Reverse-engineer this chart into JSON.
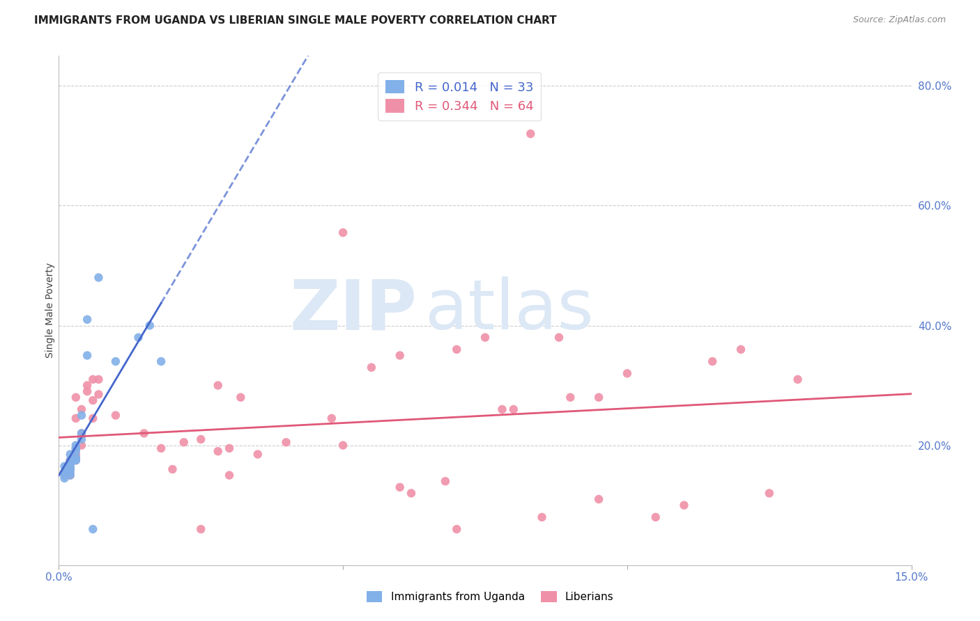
{
  "title": "IMMIGRANTS FROM UGANDA VS LIBERIAN SINGLE MALE POVERTY CORRELATION CHART",
  "source": "Source: ZipAtlas.com",
  "ylabel": "Single Male Poverty",
  "xlim": [
    0.0,
    0.15
  ],
  "ylim": [
    0.0,
    0.85
  ],
  "xtick_vals": [
    0.0,
    0.05,
    0.1,
    0.15
  ],
  "xtick_labels": [
    "0.0%",
    "",
    "",
    "15.0%"
  ],
  "ytick_vals_right": [
    0.8,
    0.6,
    0.4,
    0.2
  ],
  "ytick_labels_right": [
    "80.0%",
    "60.0%",
    "40.0%",
    "20.0%"
  ],
  "uganda_R": "0.014",
  "uganda_N": "33",
  "liberian_R": "0.344",
  "liberian_N": "64",
  "uganda_label": "Immigrants from Uganda",
  "liberian_label": "Liberians",
  "uganda_color": "#82b0e8",
  "liberian_color": "#f090a8",
  "trendline_uganda_color": "#4466cc",
  "trendline_liberian_color": "#e05878",
  "background_color": "#ffffff",
  "grid_color": "#cccccc",
  "tick_label_color": "#5577cc",
  "watermark_zip": "ZIP",
  "watermark_atlas": "atlas",
  "watermark_color": "#dce8f5",
  "scatter_size": 80,
  "title_fontsize": 11,
  "source_fontsize": 9,
  "uganda_x": [
    0.001,
    0.002,
    0.001,
    0.002,
    0.003,
    0.001,
    0.002,
    0.003,
    0.002,
    0.001,
    0.002,
    0.003,
    0.002,
    0.003,
    0.002,
    0.001,
    0.002,
    0.003,
    0.002,
    0.002,
    0.003,
    0.004,
    0.003,
    0.004,
    0.004,
    0.005,
    0.005,
    0.007,
    0.014,
    0.016,
    0.01,
    0.018,
    0.006
  ],
  "uganda_y": [
    0.155,
    0.16,
    0.165,
    0.17,
    0.175,
    0.155,
    0.16,
    0.18,
    0.185,
    0.15,
    0.155,
    0.19,
    0.165,
    0.2,
    0.175,
    0.145,
    0.16,
    0.195,
    0.15,
    0.165,
    0.175,
    0.21,
    0.195,
    0.22,
    0.25,
    0.35,
    0.41,
    0.48,
    0.38,
    0.4,
    0.34,
    0.34,
    0.06
  ],
  "liberian_x": [
    0.001,
    0.002,
    0.001,
    0.002,
    0.003,
    0.001,
    0.002,
    0.003,
    0.002,
    0.003,
    0.004,
    0.003,
    0.002,
    0.004,
    0.003,
    0.003,
    0.005,
    0.004,
    0.005,
    0.006,
    0.006,
    0.007,
    0.007,
    0.006,
    0.01,
    0.015,
    0.018,
    0.022,
    0.025,
    0.03,
    0.032,
    0.035,
    0.02,
    0.028,
    0.028,
    0.04,
    0.048,
    0.05,
    0.055,
    0.06,
    0.062,
    0.068,
    0.07,
    0.075,
    0.078,
    0.083,
    0.085,
    0.088,
    0.095,
    0.095,
    0.1,
    0.105,
    0.11,
    0.115,
    0.12,
    0.125,
    0.025,
    0.03,
    0.05,
    0.06,
    0.07,
    0.08,
    0.09,
    0.13
  ],
  "liberian_y": [
    0.155,
    0.16,
    0.15,
    0.175,
    0.18,
    0.155,
    0.165,
    0.185,
    0.16,
    0.195,
    0.2,
    0.175,
    0.15,
    0.22,
    0.28,
    0.245,
    0.3,
    0.26,
    0.29,
    0.275,
    0.31,
    0.285,
    0.31,
    0.245,
    0.25,
    0.22,
    0.195,
    0.205,
    0.21,
    0.195,
    0.28,
    0.185,
    0.16,
    0.3,
    0.19,
    0.205,
    0.245,
    0.555,
    0.33,
    0.35,
    0.12,
    0.14,
    0.36,
    0.38,
    0.26,
    0.72,
    0.08,
    0.38,
    0.28,
    0.11,
    0.32,
    0.08,
    0.1,
    0.34,
    0.36,
    0.12,
    0.06,
    0.15,
    0.2,
    0.13,
    0.06,
    0.26,
    0.28,
    0.31
  ]
}
